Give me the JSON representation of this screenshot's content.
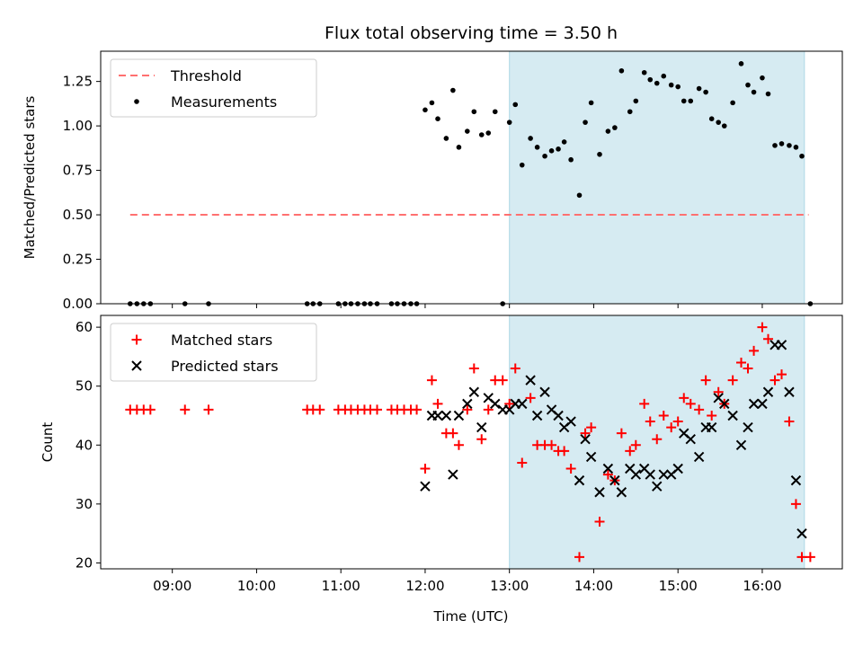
{
  "title": "Flux total observing time = 3.50 h",
  "xlabel": "Time (UTC)",
  "colors": {
    "threshold": "#ff7070",
    "measurement": "#000000",
    "matched": "#ff0000",
    "predicted": "#000000",
    "span_fill": "#add8e6"
  },
  "chart_data": [
    {
      "type": "scatter",
      "ylabel": "Matched/Predicted stars",
      "ylim": [
        0,
        1.42
      ],
      "xlim": [
        8.15,
        16.95
      ],
      "yticks": [
        0,
        0.25,
        0.5,
        0.75,
        1.0,
        1.25
      ],
      "ytick_labels": [
        "0.00",
        "0.25",
        "0.50",
        "0.75",
        "1.00",
        "1.25"
      ],
      "highlight_span": [
        13.0,
        16.5
      ],
      "legend": {
        "position": "upper-left",
        "entries": [
          {
            "label": "Threshold",
            "kind": "dashed-line"
          },
          {
            "label": "Measurements",
            "kind": "dot"
          }
        ]
      },
      "threshold": {
        "x": [
          8.5,
          16.55
        ],
        "y": 0.5
      },
      "measurements": [
        [
          8.5,
          0
        ],
        [
          8.58,
          0
        ],
        [
          8.66,
          0
        ],
        [
          8.74,
          0
        ],
        [
          9.15,
          0
        ],
        [
          9.43,
          0
        ],
        [
          10.6,
          0
        ],
        [
          10.67,
          0
        ],
        [
          10.75,
          0
        ],
        [
          10.97,
          0
        ],
        [
          11.05,
          0
        ],
        [
          11.12,
          0
        ],
        [
          11.2,
          0
        ],
        [
          11.28,
          0
        ],
        [
          11.35,
          0
        ],
        [
          11.43,
          0
        ],
        [
          11.6,
          0
        ],
        [
          11.67,
          0
        ],
        [
          11.75,
          0
        ],
        [
          11.83,
          0
        ],
        [
          11.9,
          0
        ],
        [
          12.0,
          1.09
        ],
        [
          12.08,
          1.13
        ],
        [
          12.15,
          1.04
        ],
        [
          12.25,
          0.93
        ],
        [
          12.33,
          1.2
        ],
        [
          12.4,
          0.88
        ],
        [
          12.5,
          0.97
        ],
        [
          12.58,
          1.08
        ],
        [
          12.67,
          0.95
        ],
        [
          12.75,
          0.96
        ],
        [
          12.83,
          1.08
        ],
        [
          12.92,
          0.0
        ],
        [
          13.0,
          1.02
        ],
        [
          13.07,
          1.12
        ],
        [
          13.15,
          0.78
        ],
        [
          13.25,
          0.93
        ],
        [
          13.33,
          0.88
        ],
        [
          13.42,
          0.83
        ],
        [
          13.5,
          0.86
        ],
        [
          13.58,
          0.87
        ],
        [
          13.65,
          0.91
        ],
        [
          13.73,
          0.81
        ],
        [
          13.83,
          0.61
        ],
        [
          13.9,
          1.02
        ],
        [
          13.97,
          1.13
        ],
        [
          14.07,
          0.84
        ],
        [
          14.17,
          0.97
        ],
        [
          14.25,
          0.99
        ],
        [
          14.33,
          1.31
        ],
        [
          14.43,
          1.08
        ],
        [
          14.5,
          1.14
        ],
        [
          14.6,
          1.3
        ],
        [
          14.67,
          1.26
        ],
        [
          14.75,
          1.24
        ],
        [
          14.83,
          1.28
        ],
        [
          14.92,
          1.23
        ],
        [
          15.0,
          1.22
        ],
        [
          15.07,
          1.14
        ],
        [
          15.15,
          1.14
        ],
        [
          15.25,
          1.21
        ],
        [
          15.33,
          1.19
        ],
        [
          15.4,
          1.04
        ],
        [
          15.48,
          1.02
        ],
        [
          15.55,
          1.0
        ],
        [
          15.65,
          1.13
        ],
        [
          15.75,
          1.35
        ],
        [
          15.83,
          1.23
        ],
        [
          15.9,
          1.19
        ],
        [
          16.0,
          1.27
        ],
        [
          16.07,
          1.18
        ],
        [
          16.15,
          0.89
        ],
        [
          16.23,
          0.9
        ],
        [
          16.32,
          0.89
        ],
        [
          16.4,
          0.88
        ],
        [
          16.47,
          0.83
        ],
        [
          16.57,
          0.0
        ]
      ]
    },
    {
      "type": "scatter",
      "ylabel": "Count",
      "ylim": [
        19,
        62
      ],
      "xlim": [
        8.15,
        16.95
      ],
      "yticks": [
        20,
        30,
        40,
        50,
        60
      ],
      "ytick_labels": [
        "20",
        "30",
        "40",
        "50",
        "60"
      ],
      "xticks": [
        9,
        10,
        11,
        12,
        13,
        14,
        15,
        16
      ],
      "xtick_labels": [
        "09:00",
        "10:00",
        "11:00",
        "12:00",
        "13:00",
        "14:00",
        "15:00",
        "16:00"
      ],
      "highlight_span": [
        13.0,
        16.5
      ],
      "legend": {
        "position": "upper-left",
        "entries": [
          {
            "label": "Matched stars",
            "kind": "plus"
          },
          {
            "label": "Predicted stars",
            "kind": "cross"
          }
        ]
      },
      "series": [
        {
          "name": "Matched stars",
          "marker": "plus",
          "points": [
            [
              8.5,
              46
            ],
            [
              8.58,
              46
            ],
            [
              8.66,
              46
            ],
            [
              8.74,
              46
            ],
            [
              9.15,
              46
            ],
            [
              9.43,
              46
            ],
            [
              10.6,
              46
            ],
            [
              10.67,
              46
            ],
            [
              10.75,
              46
            ],
            [
              10.97,
              46
            ],
            [
              11.05,
              46
            ],
            [
              11.12,
              46
            ],
            [
              11.2,
              46
            ],
            [
              11.28,
              46
            ],
            [
              11.35,
              46
            ],
            [
              11.43,
              46
            ],
            [
              11.6,
              46
            ],
            [
              11.67,
              46
            ],
            [
              11.75,
              46
            ],
            [
              11.83,
              46
            ],
            [
              11.9,
              46
            ],
            [
              12.0,
              36
            ],
            [
              12.08,
              51
            ],
            [
              12.15,
              47
            ],
            [
              12.25,
              42
            ],
            [
              12.33,
              42
            ],
            [
              12.4,
              40
            ],
            [
              12.5,
              46
            ],
            [
              12.58,
              53
            ],
            [
              12.67,
              41
            ],
            [
              12.75,
              46
            ],
            [
              12.83,
              51
            ],
            [
              12.92,
              51
            ],
            [
              13.0,
              47
            ],
            [
              13.07,
              53
            ],
            [
              13.15,
              37
            ],
            [
              13.25,
              48
            ],
            [
              13.33,
              40
            ],
            [
              13.42,
              40
            ],
            [
              13.5,
              40
            ],
            [
              13.58,
              39
            ],
            [
              13.65,
              39
            ],
            [
              13.73,
              36
            ],
            [
              13.83,
              21
            ],
            [
              13.9,
              42
            ],
            [
              13.97,
              43
            ],
            [
              14.07,
              27
            ],
            [
              14.17,
              35
            ],
            [
              14.25,
              34
            ],
            [
              14.33,
              42
            ],
            [
              14.43,
              39
            ],
            [
              14.5,
              40
            ],
            [
              14.6,
              47
            ],
            [
              14.67,
              44
            ],
            [
              14.75,
              41
            ],
            [
              14.83,
              45
            ],
            [
              14.92,
              43
            ],
            [
              15.0,
              44
            ],
            [
              15.07,
              48
            ],
            [
              15.15,
              47
            ],
            [
              15.25,
              46
            ],
            [
              15.33,
              51
            ],
            [
              15.4,
              45
            ],
            [
              15.48,
              49
            ],
            [
              15.55,
              47
            ],
            [
              15.65,
              51
            ],
            [
              15.75,
              54
            ],
            [
              15.83,
              53
            ],
            [
              15.9,
              56
            ],
            [
              16.0,
              60
            ],
            [
              16.07,
              58
            ],
            [
              16.15,
              51
            ],
            [
              16.23,
              52
            ],
            [
              16.32,
              44
            ],
            [
              16.4,
              30
            ],
            [
              16.47,
              21
            ],
            [
              16.57,
              21
            ]
          ]
        },
        {
          "name": "Predicted stars",
          "marker": "cross",
          "points": [
            [
              12.0,
              33
            ],
            [
              12.08,
              45
            ],
            [
              12.15,
              45
            ],
            [
              12.25,
              45
            ],
            [
              12.33,
              35
            ],
            [
              12.4,
              45
            ],
            [
              12.5,
              47
            ],
            [
              12.58,
              49
            ],
            [
              12.67,
              43
            ],
            [
              12.75,
              48
            ],
            [
              12.83,
              47
            ],
            [
              12.92,
              46
            ],
            [
              13.0,
              46
            ],
            [
              13.07,
              47
            ],
            [
              13.15,
              47
            ],
            [
              13.25,
              51
            ],
            [
              13.33,
              45
            ],
            [
              13.42,
              49
            ],
            [
              13.5,
              46
            ],
            [
              13.58,
              45
            ],
            [
              13.65,
              43
            ],
            [
              13.73,
              44
            ],
            [
              13.83,
              34
            ],
            [
              13.9,
              41
            ],
            [
              13.97,
              38
            ],
            [
              14.07,
              32
            ],
            [
              14.17,
              36
            ],
            [
              14.25,
              34
            ],
            [
              14.33,
              32
            ],
            [
              14.43,
              36
            ],
            [
              14.5,
              35
            ],
            [
              14.6,
              36
            ],
            [
              14.67,
              35
            ],
            [
              14.75,
              33
            ],
            [
              14.83,
              35
            ],
            [
              14.92,
              35
            ],
            [
              15.0,
              36
            ],
            [
              15.07,
              42
            ],
            [
              15.15,
              41
            ],
            [
              15.25,
              38
            ],
            [
              15.33,
              43
            ],
            [
              15.4,
              43
            ],
            [
              15.48,
              48
            ],
            [
              15.55,
              47
            ],
            [
              15.65,
              45
            ],
            [
              15.75,
              40
            ],
            [
              15.83,
              43
            ],
            [
              15.9,
              47
            ],
            [
              16.0,
              47
            ],
            [
              16.07,
              49
            ],
            [
              16.15,
              57
            ],
            [
              16.23,
              57
            ],
            [
              16.32,
              49
            ],
            [
              16.4,
              34
            ],
            [
              16.47,
              25
            ]
          ]
        }
      ]
    }
  ]
}
